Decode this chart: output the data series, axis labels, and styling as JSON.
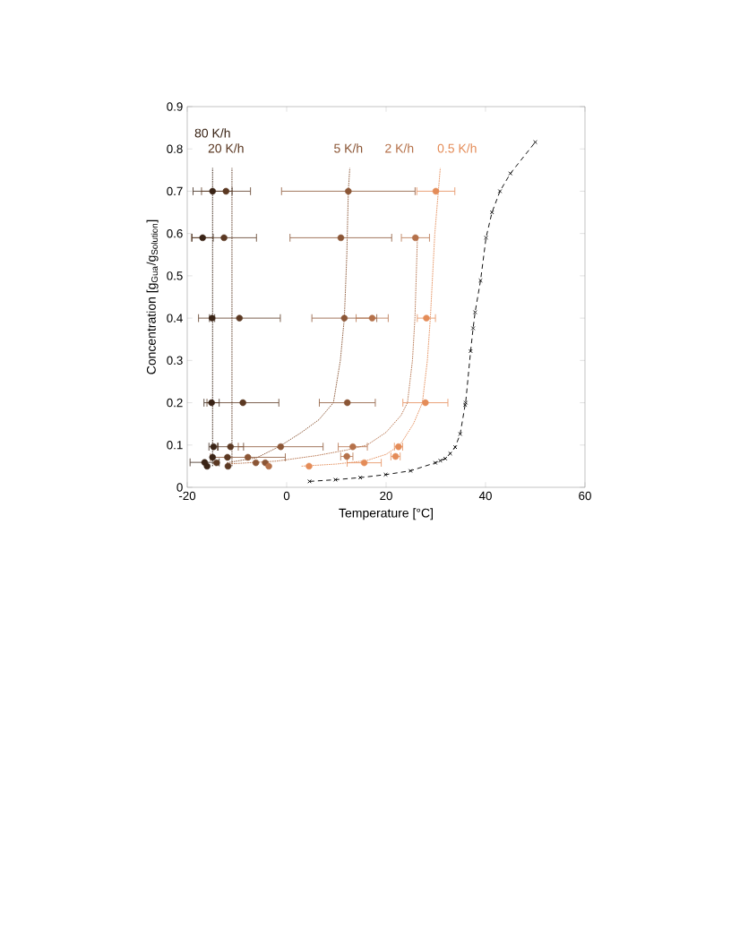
{
  "chart_data": {
    "type": "scatter",
    "xlabel": "Temperature [°C]",
    "ylabel": "Concentration [g$_{Gua}$/g$_{Solution}$]",
    "xlim": [
      -20,
      60
    ],
    "ylim": [
      0,
      0.9
    ],
    "xticks": [
      -20,
      0,
      20,
      40,
      60
    ],
    "yticks": [
      0,
      0.1,
      0.2,
      0.3,
      0.4,
      0.5,
      0.6,
      0.7,
      0.8,
      0.9
    ],
    "series": [
      {
        "name": "80 K/h",
        "color": "#3a2416",
        "marker": "circle",
        "x": [
          -14.9,
          -16.9,
          -15.0,
          -15.1,
          -14.7,
          -14.9,
          -16.5,
          -16.0
        ],
        "values": [
          0.7,
          0.59,
          0.4,
          0.2,
          0.096,
          0.071,
          0.059,
          0.05
        ],
        "xerrors": [
          4.0,
          2.2,
          0.6,
          1.6,
          1.0,
          null,
          3.0,
          null
        ]
      },
      {
        "name": "20 K/h",
        "color": "#5b3822",
        "marker": "circle",
        "x": [
          -12.2,
          -12.6,
          -9.5,
          -8.8,
          -11.3,
          -11.9,
          -14.1,
          -11.8
        ],
        "values": [
          0.7,
          0.59,
          0.4,
          0.2,
          0.096,
          0.071,
          0.058,
          0.05
        ],
        "xerrors": [
          5.0,
          6.6,
          8.3,
          7.3,
          2.7,
          null,
          null,
          null
        ]
      },
      {
        "name": "5 K/h",
        "color": "#8b5636",
        "marker": "circle",
        "x": [
          12.4,
          10.9,
          11.6,
          12.2,
          -1.2,
          -7.8,
          -6.2,
          -4.3
        ],
        "values": [
          0.7,
          0.59,
          0.4,
          0.2,
          0.096,
          0.071,
          0.058,
          0.058
        ],
        "xerrors": [
          13.5,
          10.3,
          6.6,
          5.7,
          8.6,
          7.6,
          null,
          null
        ]
      },
      {
        "name": "2 K/h",
        "color": "#b5714a",
        "marker": "circle",
        "x": [
          25.9,
          17.2,
          13.3,
          12.1,
          -3.6
        ],
        "values": [
          0.59,
          0.4,
          0.096,
          0.073,
          0.05
        ],
        "xerrors": [
          2.9,
          3.3,
          3.0,
          1.3,
          null
        ]
      },
      {
        "name": "0.5 K/h",
        "color": "#e48c58",
        "marker": "circle",
        "x": [
          30.0,
          28.1,
          27.9,
          22.5,
          21.9,
          15.6,
          4.5
        ],
        "values": [
          0.7,
          0.4,
          0.2,
          0.096,
          0.073,
          0.058,
          0.05
        ],
        "xerrors": [
          3.9,
          1.9,
          4.6,
          0.9,
          1.0,
          3.5,
          null
        ]
      },
      {
        "type": "line",
        "color": "#3a2416",
        "marker": "none",
        "line_style": "dotted",
        "x": [
          -14.9,
          -14.9
        ],
        "values": [
          0.05,
          0.755
        ]
      },
      {
        "type": "line",
        "color": "#5b3822",
        "marker": "none",
        "line_style": "dotted",
        "x": [
          -11.0,
          -11.0
        ],
        "values": [
          0.05,
          0.755
        ]
      },
      {
        "type": "line",
        "color": "#8b5636",
        "marker": "none",
        "line_style": "dotted",
        "x": [
          -12,
          -6,
          -1.4,
          3,
          6.5,
          9.4,
          10.8,
          11.6,
          12.1,
          12.4,
          12.7
        ],
        "values": [
          0.058,
          0.07,
          0.097,
          0.13,
          0.16,
          0.2,
          0.3,
          0.4,
          0.55,
          0.7,
          0.755
        ]
      },
      {
        "type": "line",
        "color": "#b5714a",
        "marker": "none",
        "line_style": "dotted",
        "x": [
          -12,
          -2,
          6,
          12,
          16.2,
          20,
          23,
          24.3,
          25.3,
          25.8,
          26.3
        ],
        "values": [
          0.055,
          0.062,
          0.075,
          0.088,
          0.1,
          0.13,
          0.17,
          0.2,
          0.3,
          0.4,
          0.59
        ]
      },
      {
        "type": "line",
        "color": "#e48c58",
        "marker": "none",
        "line_style": "dotted",
        "x": [
          3,
          10,
          16,
          20,
          22.8,
          25.5,
          27.3,
          28.3,
          28.9,
          29.8,
          30.9
        ],
        "values": [
          0.05,
          0.055,
          0.063,
          0.078,
          0.1,
          0.15,
          0.2,
          0.3,
          0.4,
          0.6,
          0.755
        ]
      },
      {
        "type": "line",
        "color": "#000000",
        "marker": "cross",
        "line_style": "dashed",
        "x": [
          4.6,
          9.8,
          14.8,
          19.9,
          24.9,
          29.9,
          30.9,
          31.9,
          32.9,
          33.9,
          34.9,
          35.9,
          36.0,
          37.0,
          37.5,
          37.9,
          39.0,
          40.1,
          41.3,
          42.9,
          45.0,
          50.0
        ],
        "values": [
          0.014,
          0.018,
          0.023,
          0.03,
          0.039,
          0.058,
          0.063,
          0.068,
          0.08,
          0.095,
          0.126,
          0.195,
          0.2,
          0.322,
          0.376,
          0.414,
          0.489,
          0.59,
          0.65,
          0.7,
          0.742,
          0.816
        ]
      }
    ]
  }
}
